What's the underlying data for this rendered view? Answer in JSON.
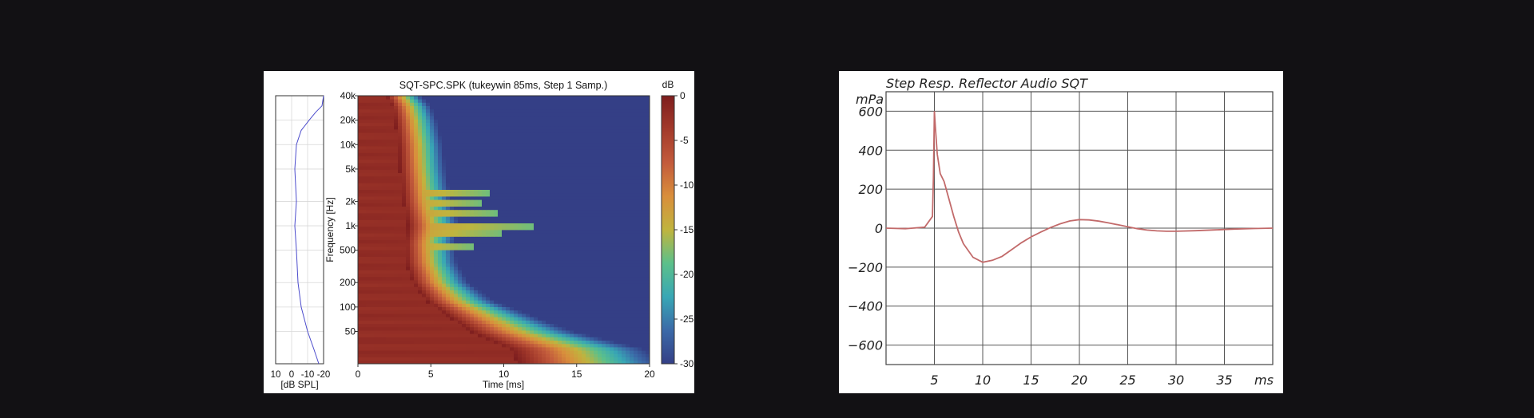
{
  "chart_data": [
    {
      "type": "heatmap",
      "title": "SQT-SPC.SPK (tukeywin 85ms, Step 1 Samp.)",
      "xlabel": "Time [ms]",
      "ylabel": "Frequency [Hz]",
      "x_ticks": [
        "0",
        "5",
        "10",
        "15",
        "20"
      ],
      "xlim": [
        0,
        20
      ],
      "y_scale": "log",
      "y_ticks": [
        {
          "hz": 50,
          "label": "50"
        },
        {
          "hz": 100,
          "label": "100"
        },
        {
          "hz": 200,
          "label": "200"
        },
        {
          "hz": 500,
          "label": "500"
        },
        {
          "hz": 1000,
          "label": "1k"
        },
        {
          "hz": 2000,
          "label": "2k"
        },
        {
          "hz": 5000,
          "label": "5k"
        },
        {
          "hz": 10000,
          "label": "10k"
        },
        {
          "hz": 20000,
          "label": "20k"
        },
        {
          "hz": 40000,
          "label": "40k"
        }
      ],
      "ylim": [
        20,
        40000
      ],
      "colorbar": {
        "label": "dB",
        "ticks": [
          "0",
          "-5",
          "-10",
          "-15",
          "-20",
          "-25",
          "-30"
        ],
        "range": [
          -30,
          0
        ],
        "colors": [
          "#7e1e1e",
          "#a33a2b",
          "#c35b3c",
          "#d98e3c",
          "#c0b43e",
          "#5cc08a",
          "#38a7b5",
          "#3b6aa8",
          "#343f86"
        ]
      },
      "decay_end_ms": [
        {
          "hz": 20,
          "ms": 20
        },
        {
          "hz": 30,
          "ms": 19
        },
        {
          "hz": 50,
          "ms": 14
        },
        {
          "hz": 80,
          "ms": 11
        },
        {
          "hz": 120,
          "ms": 8.5
        },
        {
          "hz": 200,
          "ms": 6.8
        },
        {
          "hz": 350,
          "ms": 6
        },
        {
          "hz": 600,
          "ms": 5.8
        },
        {
          "hz": 1000,
          "ms": 6.2
        },
        {
          "hz": 2000,
          "ms": 5.6
        },
        {
          "hz": 5000,
          "ms": 5.2
        },
        {
          "hz": 10000,
          "ms": 5
        },
        {
          "hz": 20000,
          "ms": 4.6
        },
        {
          "hz": 30000,
          "ms": 4.2
        },
        {
          "hz": 40000,
          "ms": 3.5
        }
      ],
      "ridges": [
        {
          "hz": 2600,
          "ms": 9
        },
        {
          "hz": 1900,
          "ms": 8.5
        },
        {
          "hz": 1450,
          "ms": 9.5
        },
        {
          "hz": 1000,
          "ms": 12
        },
        {
          "hz": 820,
          "ms": 10
        },
        {
          "hz": 560,
          "ms": 8
        }
      ],
      "side_response": {
        "xlabel": "[dB SPL]",
        "x_ticks": [
          "10",
          "0",
          "-10",
          "-20"
        ],
        "xlim": [
          10,
          -20
        ],
        "frequency_hz": [
          20,
          30,
          50,
          100,
          200,
          500,
          1000,
          2000,
          5000,
          10000,
          15000,
          20000,
          25000,
          30000,
          40000
        ],
        "level_db": [
          -17,
          -14,
          -10,
          -6,
          -4,
          -3,
          -2,
          -3,
          -2,
          -3,
          -6,
          -11,
          -15,
          -19,
          -20
        ]
      }
    },
    {
      "type": "line",
      "title": "Step Resp. Reflector Audio SQT",
      "ylabel": "mPa",
      "xlabel": "ms",
      "x_ticks": [
        "5",
        "10",
        "15",
        "20",
        "25",
        "30",
        "35"
      ],
      "y_ticks": [
        "600",
        "400",
        "200",
        "0",
        "−200",
        "−400",
        "−600"
      ],
      "xlim": [
        0,
        40
      ],
      "ylim": [
        -700,
        700
      ],
      "series": [
        {
          "color": "#c26a6a",
          "x": [
            0,
            2,
            4,
            4.8,
            4.9,
            5.0,
            5.1,
            5.3,
            5.6,
            6,
            6.5,
            7,
            7.5,
            8,
            9,
            10,
            11,
            12,
            13,
            14,
            15,
            16,
            17,
            18,
            19,
            20,
            21,
            22,
            23,
            24,
            25,
            26,
            27,
            28,
            29,
            30,
            32,
            34,
            36,
            38,
            40
          ],
          "y": [
            0,
            -3,
            5,
            60,
            260,
            600,
            520,
            380,
            280,
            240,
            150,
            60,
            -20,
            -80,
            -150,
            -175,
            -165,
            -145,
            -110,
            -75,
            -45,
            -20,
            3,
            22,
            37,
            44,
            42,
            36,
            27,
            17,
            7,
            -3,
            -10,
            -14,
            -16,
            -16,
            -13,
            -9,
            -5,
            -2,
            0
          ]
        }
      ]
    }
  ]
}
